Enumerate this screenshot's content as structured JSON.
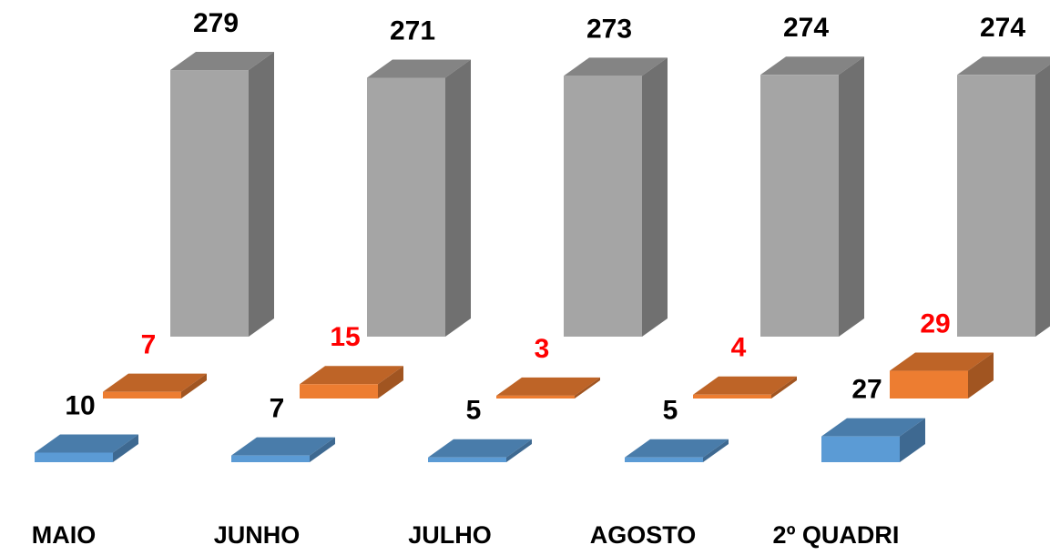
{
  "chart_data": {
    "type": "bar3d",
    "categories": [
      "MAIO",
      "JUNHO",
      "JULHO",
      "AGOSTO",
      "2º QUADRI"
    ],
    "series": [
      {
        "color": "#5b9bd5",
        "label_color": "#000000",
        "values": [
          10,
          7,
          5,
          5,
          27
        ]
      },
      {
        "color": "#ed7d31",
        "label_color": "#ff0000",
        "values": [
          7,
          15,
          3,
          4,
          29
        ]
      },
      {
        "color": "#a5a5a5",
        "label_color": "#000000",
        "values": [
          279,
          271,
          273,
          274,
          274
        ]
      }
    ]
  }
}
